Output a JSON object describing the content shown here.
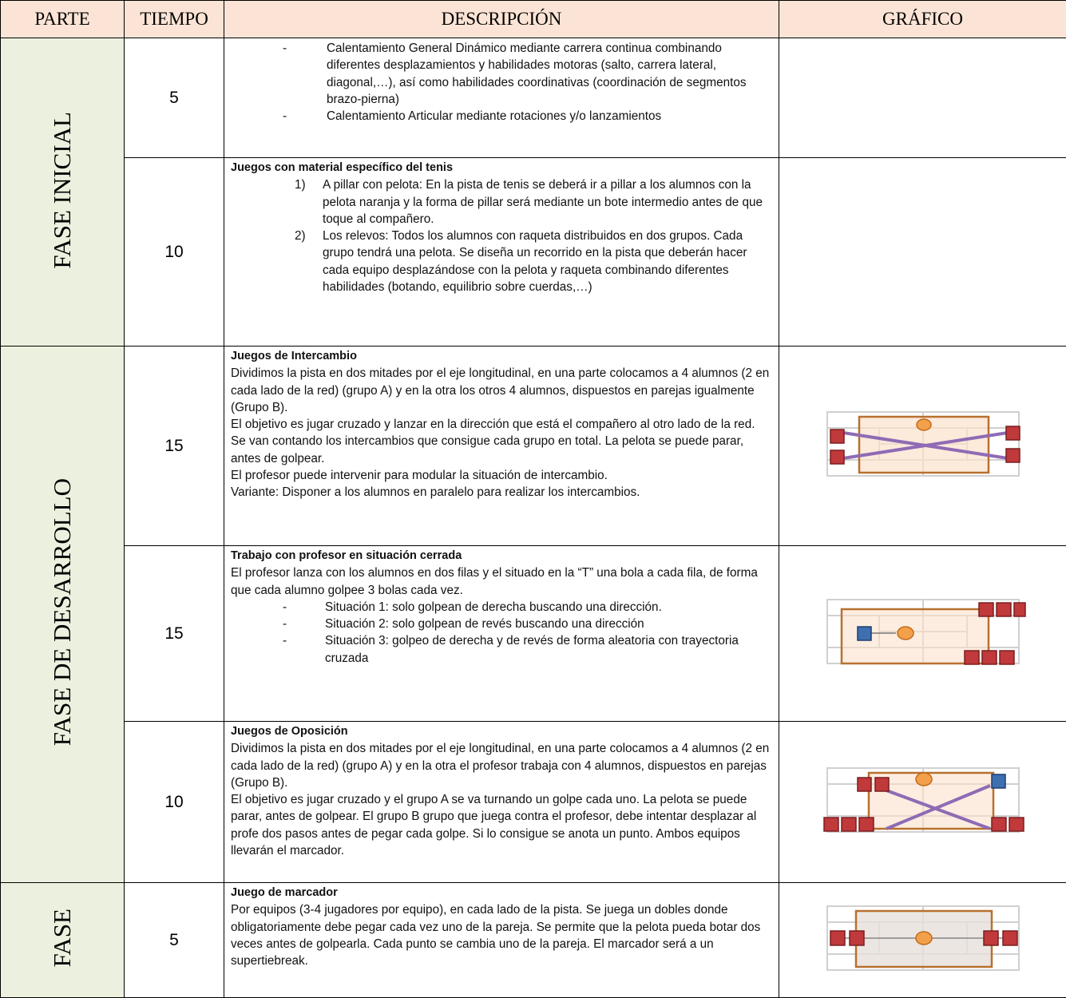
{
  "header": [
    "PARTE",
    "TIEMPO",
    "DESCRIPCIÓN",
    "GRÁFICO"
  ],
  "phases": [
    {
      "label": "FASE INICIAL",
      "rows": [
        {
          "time": "5",
          "items": [
            {
              "marker": "-",
              "text": "Calentamiento General Dinámico mediante carrera continua combinando diferentes desplazamientos y habilidades motoras (salto, carrera lateral, diagonal,…), así como habilidades coordinativas (coordinación de segmentos brazo-pierna)"
            },
            {
              "marker": "-",
              "text": "Calentamiento Articular mediante rotaciones y/o lanzamientos"
            }
          ]
        },
        {
          "time": "10",
          "title": "Juegos con material específico del tenis",
          "items": [
            {
              "marker": "1)",
              "text": "A pillar con pelota: En la pista de tenis se deberá ir a pillar a los alumnos con la pelota naranja y la forma de pillar será mediante un bote intermedio antes de que toque al compañero."
            },
            {
              "marker": "2)",
              "text": "Los relevos: Todos los alumnos con raqueta distribuidos en dos grupos. Cada grupo tendrá una pelota. Se diseña un recorrido en la pista que deberán hacer cada equipo desplazándose con la pelota y raqueta combinando diferentes habilidades (botando, equilibrio sobre cuerdas,…)"
            }
          ]
        }
      ]
    },
    {
      "label": "FASE DE DESARROLLO",
      "rows": [
        {
          "time": "15",
          "title": "Juegos de Intercambio",
          "paragraphs": [
            "Dividimos la pista en dos mitades por el eje longitudinal, en una parte colocamos a 4 alumnos (2 en cada lado de la red) (grupo A) y en la otra los otros  4 alumnos, dispuestos en parejas igualmente (Grupo B).",
            "El objetivo es jugar cruzado y lanzar en la dirección que está el compañero al otro lado de la red.  Se van contando los intercambios que consigue cada grupo en total. La pelota se puede parar, antes de golpear.",
            "El profesor puede intervenir para modular la situación de intercambio.",
            "Variante: Disponer a los alumnos en paralelo para realizar los intercambios."
          ]
        },
        {
          "time": "15",
          "title": "Trabajo con profesor en situación cerrada",
          "paragraphs": [
            "El profesor lanza con los alumnos en dos filas y el situado en la “T” una bola a cada fila, de forma que cada alumno golpee 3 bolas cada vez."
          ],
          "items": [
            {
              "marker": "-",
              "text": "Situación 1: solo golpean de derecha buscando una dirección."
            },
            {
              "marker": "-",
              "text": "Situación 2: solo golpean de revés buscando una dirección"
            },
            {
              "marker": "-",
              "text": "Situación 3: golpeo de derecha y de revés de forma aleatoria con trayectoria cruzada"
            }
          ]
        },
        {
          "time": "10",
          "title": "Juegos de Oposición",
          "paragraphs": [
            "Dividimos la pista en dos mitades por el eje longitudinal, en una parte colocamos a 4 alumnos (2 en cada lado de la red) (grupo A) y en la otra el profesor trabaja con 4 alumnos, dispuestos en parejas (Grupo B).",
            "El objetivo es jugar cruzado y el grupo A se va turnando un golpe cada uno. La pelota se puede parar, antes de golpear. El grupo B grupo que juega contra el profesor, debe intentar desplazar al profe dos pasos antes de pegar cada golpe. Si lo consigue se anota un punto. Ambos equipos llevarán el marcador."
          ]
        }
      ]
    },
    {
      "label": "FASE",
      "rows": [
        {
          "time": "5",
          "title": "Juego de marcador",
          "paragraphs": [
            "Por equipos (3-4 jugadores por equipo), en cada lado de la pista. Se juega un dobles donde obligatoriamente debe pegar cada vez uno de la pareja. Se permite que la pelota pueda botar dos veces antes de golpearla. Cada punto se cambia uno de la pareja. El marcador será a un supertiebreak."
          ]
        }
      ]
    }
  ]
}
